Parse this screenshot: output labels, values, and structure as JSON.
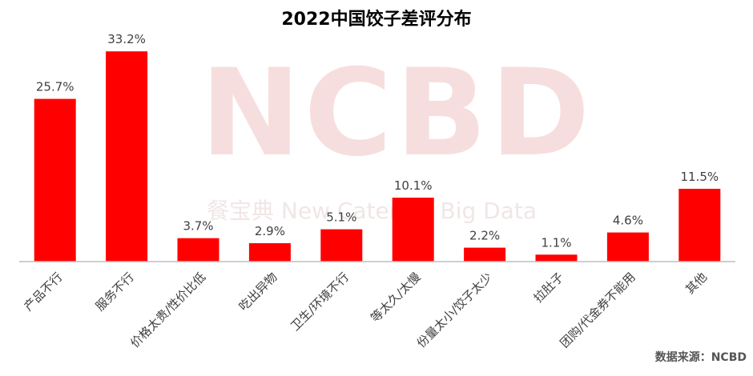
{
  "watermark": {
    "logo_text": "NCBD",
    "sub_text": "餐宝典 New Catering Big Data"
  },
  "source_note": "数据来源：NCBD",
  "colors": {
    "bar": "#ff0000",
    "axis": "#bfbfbf",
    "label": "#404040"
  },
  "chart_data": {
    "type": "bar",
    "title": "2022中国饺子差评分布",
    "xlabel": "",
    "ylabel": "",
    "categories": [
      "产品不行",
      "服务不行",
      "价格太贵/性价比低",
      "吃出异物",
      "卫生/环境不行",
      "等太久/太慢",
      "份量太小/饺子太少",
      "拉肚子",
      "团购/代金券不能用",
      "其他"
    ],
    "values": [
      25.7,
      33.2,
      3.7,
      2.9,
      5.1,
      10.1,
      2.2,
      1.1,
      4.6,
      11.5
    ],
    "value_labels": [
      "25.7%",
      "33.2%",
      "3.7%",
      "2.9%",
      "5.1%",
      "10.1%",
      "2.2%",
      "1.1%",
      "4.6%",
      "11.5%"
    ],
    "ylim": [
      0,
      35
    ],
    "grid": false,
    "legend": "none"
  }
}
